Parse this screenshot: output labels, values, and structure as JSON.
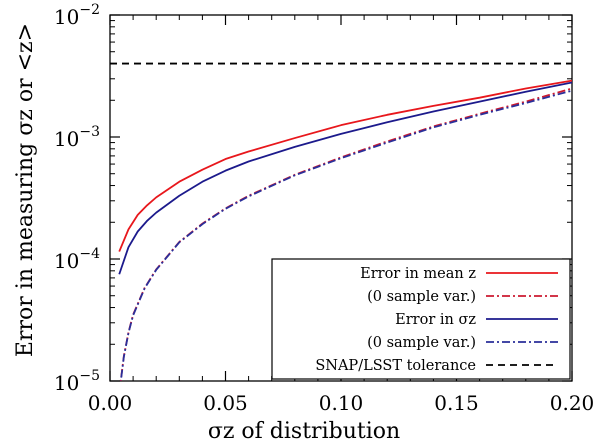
{
  "chart_data": {
    "type": "line",
    "xlabel": "σz of distribution",
    "ylabel": "Error in measuring σz or <z>",
    "xlim": [
      0.0,
      0.2
    ],
    "ylim": [
      1e-05,
      0.01
    ],
    "yscale": "log",
    "grid": false,
    "legend_position": "bottom-right",
    "x_ticks": [
      0.0,
      0.05,
      0.1,
      0.15,
      0.2
    ],
    "x_tick_labels": [
      "0.00",
      "0.05",
      "0.10",
      "0.15",
      "0.20"
    ],
    "y_ticks": [
      1e-05,
      0.0001,
      0.001,
      0.01
    ],
    "y_tick_labels": [
      {
        "base": "10",
        "exp": "−5"
      },
      {
        "base": "10",
        "exp": "−4"
      },
      {
        "base": "10",
        "exp": "−3"
      },
      {
        "base": "10",
        "exp": "−2"
      }
    ],
    "series": [
      {
        "name": "Error in mean z",
        "color": "#e8171c",
        "dash": "solid",
        "x": [
          0.004,
          0.008,
          0.012,
          0.016,
          0.02,
          0.03,
          0.04,
          0.05,
          0.06,
          0.08,
          0.1,
          0.12,
          0.14,
          0.16,
          0.18,
          0.2
        ],
        "y": [
          0.000115,
          0.000175,
          0.00023,
          0.000275,
          0.00032,
          0.00043,
          0.00054,
          0.00066,
          0.00076,
          0.00098,
          0.00125,
          0.00152,
          0.0018,
          0.0021,
          0.0025,
          0.0029
        ]
      },
      {
        "name": "(0 sample var.)",
        "color": "#cc1a30",
        "dash": "dashdot",
        "x": [
          0.004,
          0.006,
          0.008,
          0.01,
          0.015,
          0.02,
          0.03,
          0.04,
          0.05,
          0.06,
          0.08,
          0.1,
          0.12,
          0.14,
          0.16,
          0.18,
          0.2
        ],
        "y": [
          8e-06,
          1.6e-05,
          2.5e-05,
          3.5e-05,
          5.8e-05,
          8.2e-05,
          0.000138,
          0.000195,
          0.00026,
          0.00033,
          0.00049,
          0.00068,
          0.00092,
          0.00122,
          0.00155,
          0.00195,
          0.0025
        ]
      },
      {
        "name": "Error in σz",
        "color": "#1c1a8c",
        "dash": "solid",
        "x": [
          0.004,
          0.008,
          0.012,
          0.016,
          0.02,
          0.03,
          0.04,
          0.05,
          0.06,
          0.08,
          0.1,
          0.12,
          0.14,
          0.16,
          0.18,
          0.2
        ],
        "y": [
          7.5e-05,
          0.000125,
          0.000168,
          0.000205,
          0.00024,
          0.00033,
          0.00043,
          0.00053,
          0.00063,
          0.00083,
          0.00106,
          0.00132,
          0.00162,
          0.00195,
          0.00235,
          0.0028
        ]
      },
      {
        "name": "(0 sample var.)",
        "color": "#2a2f9a",
        "dash": "dashdot",
        "x": [
          0.004,
          0.006,
          0.008,
          0.01,
          0.015,
          0.02,
          0.03,
          0.04,
          0.05,
          0.06,
          0.08,
          0.1,
          0.12,
          0.14,
          0.16,
          0.18,
          0.2
        ],
        "y": [
          7.9e-06,
          1.58e-05,
          2.48e-05,
          3.45e-05,
          5.75e-05,
          8.15e-05,
          0.000137,
          0.000193,
          0.000258,
          0.000326,
          0.000485,
          0.00067,
          0.0009,
          0.0012,
          0.00152,
          0.0019,
          0.0024
        ]
      },
      {
        "name": "SNAP/LSST tolerance",
        "color": "#000000",
        "dash": "dashed",
        "x": [
          0.0,
          0.2
        ],
        "y": [
          0.004,
          0.004
        ]
      }
    ]
  }
}
